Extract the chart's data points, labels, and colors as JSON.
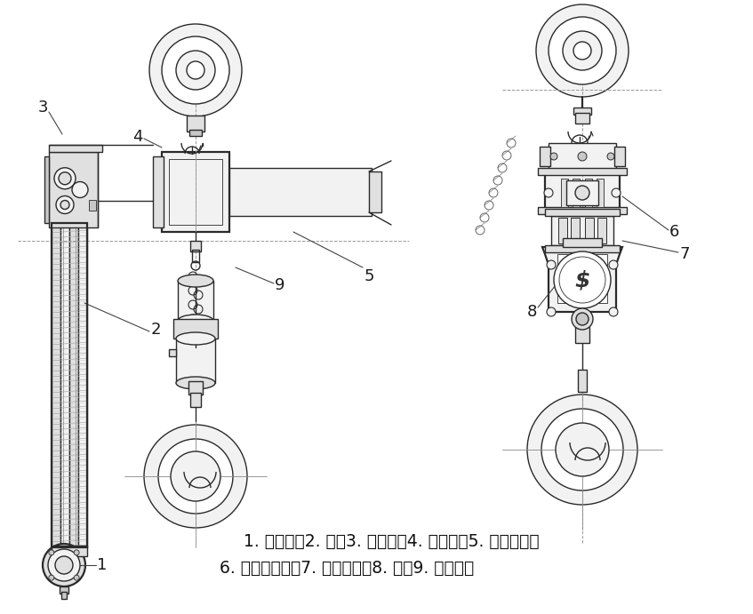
{
  "bg_color": "#ffffff",
  "caption_line1": "1. 手阀总成2. 胶管3. 马达总成4. 吊挂总成5. 减速器总成",
  "caption_line2": "6. 防撞限位总成7. 下钩盒总成8. 铭牌9. 起重链条",
  "caption_fontsize": 13.5,
  "fig_width": 8.47,
  "fig_height": 6.91,
  "dpi": 100,
  "lc": "#2a2a2a",
  "lc_gray": "#888888",
  "lc_light": "#aaaaaa",
  "fc_light": "#f2f2f2",
  "fc_mid": "#e0e0e0",
  "fc_dark": "#c8c8c8",
  "lw_main": 1.0,
  "lw_thick": 1.6,
  "lw_thin": 0.6,
  "label_fontsize": 13
}
